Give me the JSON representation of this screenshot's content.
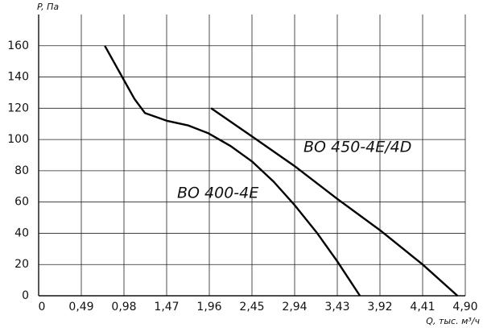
{
  "chart_data": {
    "type": "line",
    "y_label": "P, Па",
    "x_label": "Q, тыс. м³/ч",
    "xlim": [
      0,
      4.9
    ],
    "ylim": [
      0,
      180
    ],
    "xticks": [
      0,
      {
        "value": 0.49,
        "label": "0,49"
      },
      {
        "value": 0.98,
        "label": "0,98"
      },
      {
        "value": 1.47,
        "label": "1,47"
      },
      {
        "value": 1.96,
        "label": "1,96"
      },
      {
        "value": 2.45,
        "label": "2,45"
      },
      {
        "value": 2.94,
        "label": "2,94"
      },
      {
        "value": 3.43,
        "label": "3,43"
      },
      {
        "value": 3.92,
        "label": "3,92"
      },
      {
        "value": 4.41,
        "label": "4,41"
      },
      {
        "value": 4.9,
        "label": "4,90"
      }
    ],
    "yticks": [
      0,
      20,
      40,
      60,
      80,
      100,
      120,
      140,
      160
    ],
    "grid": true,
    "series": [
      {
        "name": "BO 400-4E",
        "color": "#000000",
        "x": [
          0.76,
          0.86,
          0.97,
          1.1,
          1.22,
          1.47,
          1.72,
          1.95,
          2.2,
          2.45,
          2.7,
          2.94,
          3.2,
          3.43,
          3.69
        ],
        "values": [
          160,
          150,
          139,
          126,
          117,
          112,
          109,
          104,
          96,
          86,
          73,
          58,
          40,
          22,
          0
        ]
      },
      {
        "name": "BO 450-4E/4D",
        "color": "#000000",
        "x": [
          1.98,
          2.45,
          2.94,
          3.43,
          3.92,
          4.41,
          4.81
        ],
        "values": [
          120,
          102,
          83,
          62,
          42,
          20,
          0
        ]
      }
    ]
  }
}
